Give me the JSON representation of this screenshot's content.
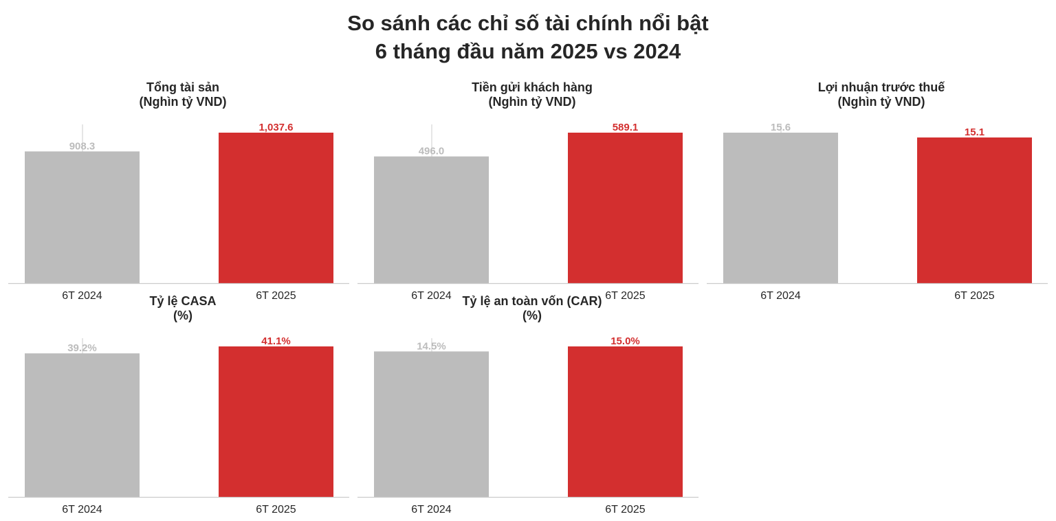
{
  "title_line1": "So sánh các chỉ số tài chính nổi bật",
  "title_line2": "6 tháng đầu năm 2025 vs 2024",
  "colors": {
    "previous": "#bcbcbc",
    "current": "#d32f2f",
    "axis": "#cccccc",
    "text": "#262626"
  },
  "chart_data": [
    {
      "type": "bar",
      "title_line1": "Tổng tài sản",
      "title_line2": "(Nghìn tỷ VND)",
      "categories": [
        "6T 2024",
        "6T 2025"
      ],
      "values": [
        908.3,
        1037.6
      ],
      "labels": [
        "908.3",
        "1,037.6"
      ],
      "ylim": [
        0,
        1037.6
      ]
    },
    {
      "type": "bar",
      "title_line1": "Tiền gửi khách hàng",
      "title_line2": "(Nghìn tỷ VND)",
      "categories": [
        "6T 2024",
        "6T 2025"
      ],
      "values": [
        496.0,
        589.1
      ],
      "labels": [
        "496.0",
        "589.1"
      ],
      "ylim": [
        0,
        589.1
      ]
    },
    {
      "type": "bar",
      "title_line1": "Lợi nhuận trước thuế",
      "title_line2": "(Nghìn tỷ VND)",
      "categories": [
        "6T 2024",
        "6T 2025"
      ],
      "values": [
        15.6,
        15.1
      ],
      "labels": [
        "15.6",
        "15.1"
      ],
      "ylim": [
        0,
        15.6
      ]
    },
    {
      "type": "bar",
      "title_line1": "Tỷ lệ CASA",
      "title_line2": "(%)",
      "categories": [
        "6T 2024",
        "6T 2025"
      ],
      "values": [
        39.2,
        41.1
      ],
      "labels": [
        "39.2%",
        "41.1%"
      ],
      "ylim": [
        0,
        41.1
      ]
    },
    {
      "type": "bar",
      "title_line1": "Tỷ lệ an toàn vốn (CAR)",
      "title_line2": "(%)",
      "categories": [
        "6T 2024",
        "6T 2025"
      ],
      "values": [
        14.5,
        15.0
      ],
      "labels": [
        "14.5%",
        "15.0%"
      ],
      "ylim": [
        0,
        15.0
      ]
    }
  ]
}
